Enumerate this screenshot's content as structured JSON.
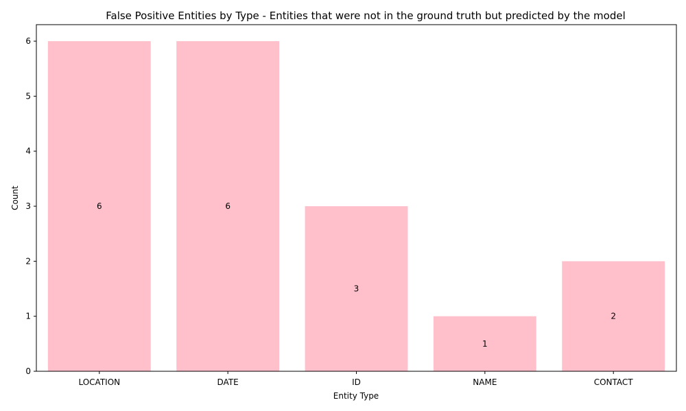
{
  "chart_data": {
    "type": "bar",
    "title": "False Positive Entities by Type - Entities that were not in the ground truth but predicted by the model",
    "xlabel": "Entity Type",
    "ylabel": "Count",
    "categories": [
      "LOCATION",
      "DATE",
      "ID",
      "NAME",
      "CONTACT"
    ],
    "values": [
      6,
      6,
      3,
      1,
      2
    ],
    "data_labels": [
      "6",
      "6",
      "3",
      "1",
      "2"
    ],
    "ylim": [
      0,
      6.3
    ],
    "yticks": [
      0,
      1,
      2,
      3,
      4,
      5,
      6
    ],
    "grid": false,
    "legend": "none",
    "bar_color": "#ffc0cb"
  }
}
